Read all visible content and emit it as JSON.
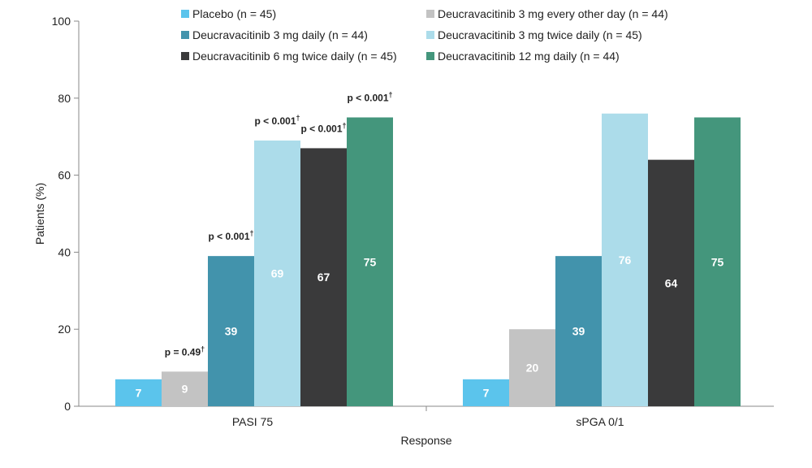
{
  "chart_data": {
    "type": "bar",
    "title": "",
    "xlabel": "Response",
    "ylabel": "Patients (%)",
    "ylim": [
      0,
      100
    ],
    "yticks": [
      0,
      20,
      40,
      60,
      80,
      100
    ],
    "grid": false,
    "legend_position": "top",
    "categories": [
      "PASI 75",
      "sPGA 0/1"
    ],
    "series": [
      {
        "name": "Placebo (n = 45)",
        "color": "#5bc4ec",
        "values": [
          7,
          7
        ],
        "labels": [
          "7",
          "7"
        ],
        "pvalues": [
          "",
          ""
        ]
      },
      {
        "name": "Deucravacitinib 3 mg every other day (n = 44)",
        "color": "#c3c3c3",
        "values": [
          9,
          20
        ],
        "labels": [
          "9",
          "20"
        ],
        "pvalues": [
          "p = 0.49",
          ""
        ]
      },
      {
        "name": "Deucravacitinib 3 mg daily (n = 44)",
        "color": "#4293ac",
        "values": [
          39,
          39
        ],
        "labels": [
          "39",
          "39"
        ],
        "pvalues": [
          "p < 0.001",
          ""
        ]
      },
      {
        "name": "Deucravacitinib 3 mg twice daily (n = 45)",
        "color": "#acdcea",
        "values": [
          69,
          76
        ],
        "labels": [
          "69",
          "76"
        ],
        "pvalues": [
          "p < 0.001",
          ""
        ]
      },
      {
        "name": "Deucravacitinib 6 mg twice daily (n = 45)",
        "color": "#3a3a3b",
        "values": [
          67,
          64
        ],
        "labels": [
          "67",
          "64"
        ],
        "pvalues": [
          "p < 0.001",
          ""
        ]
      },
      {
        "name": "Deucravacitinib 12 mg daily (n = 44)",
        "color": "#44967c",
        "values": [
          75,
          75
        ],
        "labels": [
          "75",
          "75"
        ],
        "pvalues": [
          "p < 0.001",
          ""
        ]
      }
    ],
    "pvalue_marker": "†"
  }
}
